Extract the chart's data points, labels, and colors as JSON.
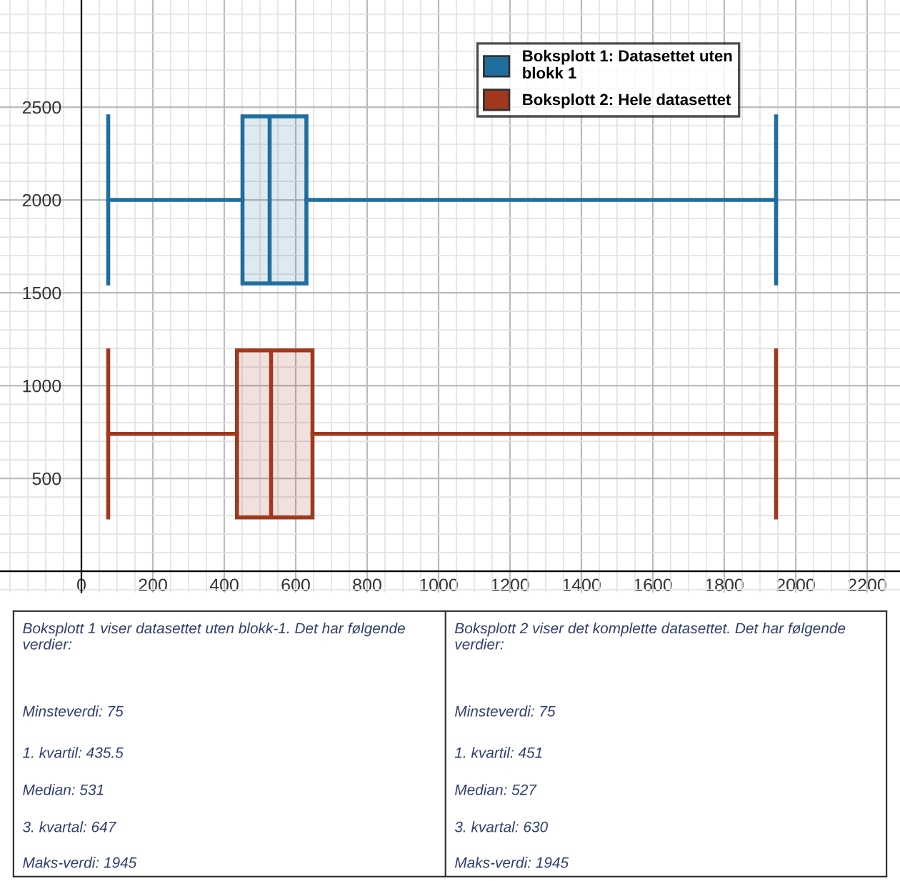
{
  "chart_data": {
    "type": "box",
    "orientation": "horizontal",
    "xlim": [
      -228,
      2292
    ],
    "ylim": [
      -115,
      3077
    ],
    "xticks": [
      0,
      200,
      400,
      600,
      800,
      1000,
      1200,
      1400,
      1600,
      1800,
      2000,
      2200
    ],
    "yticks": [
      500,
      1000,
      1500,
      2000,
      2500
    ],
    "grid": true,
    "legend": "top right",
    "series": [
      {
        "name": "Boksplott 1: Datasettet uten\nblokk 1",
        "color": "#1f6e9e",
        "x": [
          2000
        ],
        "boxes": [
          {
            "low": 75,
            "q1": 451,
            "median": 527,
            "q3": 630,
            "high": 1945
          }
        ]
      },
      {
        "name": "Boksplott 2: Hele datasettet",
        "color": "#a0381e",
        "x": [
          740
        ],
        "boxes": [
          {
            "low": 75,
            "q1": 435.5,
            "median": 531,
            "q3": 647,
            "high": 1945
          }
        ]
      }
    ],
    "annotations": [
      "Boksplott 1 viser datasettet uten blokk-1. Det har følgende\nverdier:",
      "Minsteverdi: 75",
      "1. kvartil: 435.5",
      "Median: 531",
      "3. kvartal: 647",
      "Maks-verdi: 1945",
      "Boksplott 2 viser det komplette datasettet. Det har følgende\nverdier:",
      "Minsteverdi: 75",
      "1. kvartil: 451",
      "Median: 527",
      "3. kvartal: 630",
      "Maks-verdi: 1945"
    ]
  }
}
